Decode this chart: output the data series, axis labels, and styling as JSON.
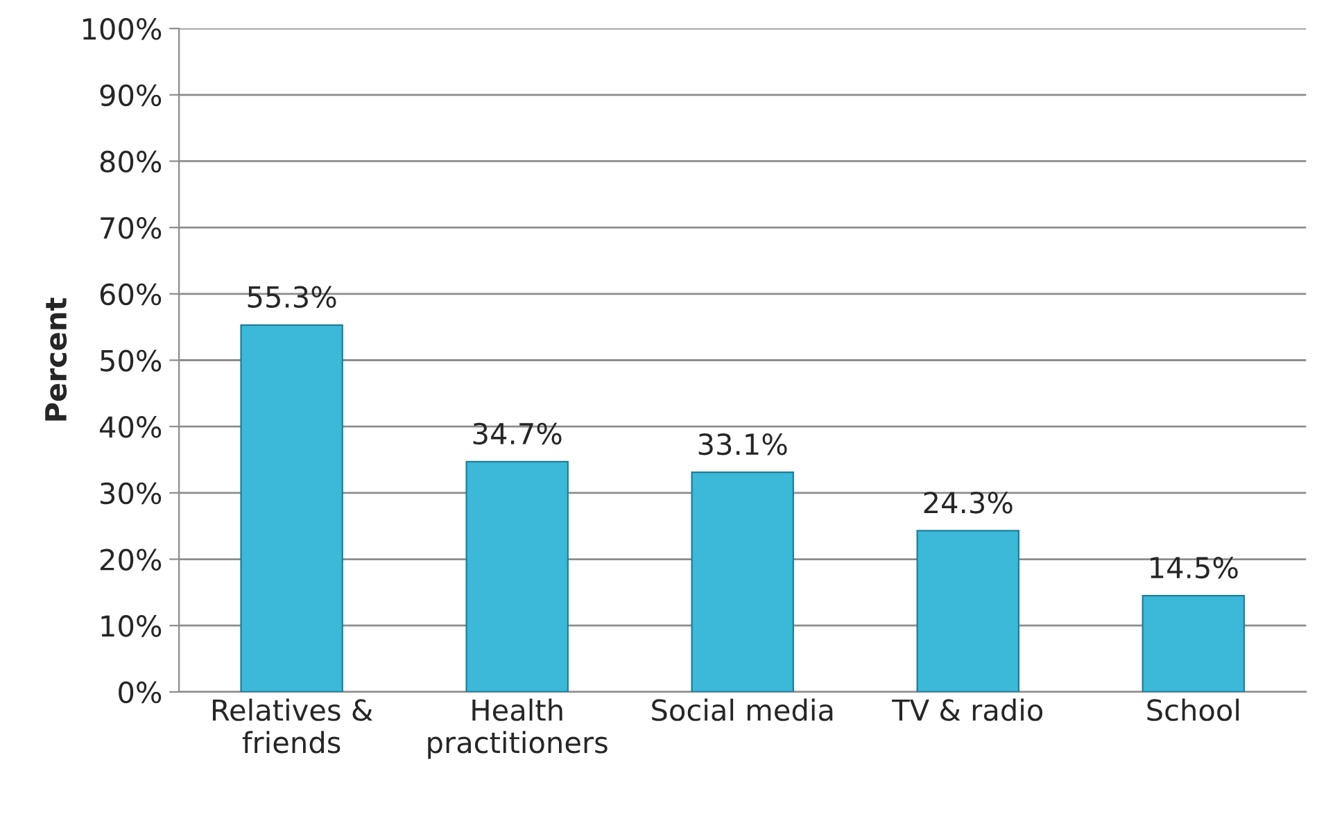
{
  "chart_data": {
    "type": "bar",
    "ylabel": "Percent",
    "categories": [
      "Relatives & friends",
      "Health practitioners",
      "Social media",
      "TV & radio",
      "School"
    ],
    "values": [
      55.3,
      34.7,
      33.1,
      24.3,
      14.5
    ],
    "value_labels": [
      "55.3%",
      "34.7%",
      "33.1%",
      "24.3%",
      "14.5%"
    ],
    "color": "#3cb8d8",
    "ylim": [
      0,
      100
    ],
    "yticks": [
      {
        "value": 0,
        "label": "0%"
      },
      {
        "value": 10,
        "label": "10%"
      },
      {
        "value": 20,
        "label": "20%"
      },
      {
        "value": 30,
        "label": "30%"
      },
      {
        "value": 40,
        "label": "40%"
      },
      {
        "value": 50,
        "label": "50%"
      },
      {
        "value": 60,
        "label": "60%"
      },
      {
        "value": 70,
        "label": "70%"
      },
      {
        "value": 80,
        "label": "80%"
      },
      {
        "value": 90,
        "label": "90%"
      },
      {
        "value": 100,
        "label": "100%"
      }
    ],
    "grid": "y",
    "legend": false
  }
}
